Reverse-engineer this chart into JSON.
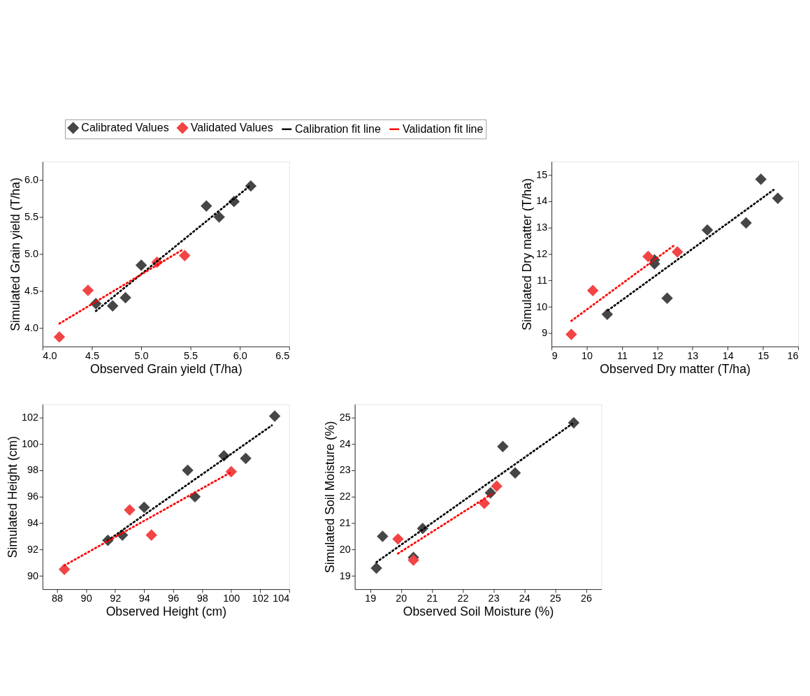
{
  "chart_data": [
    {
      "type": "scatter",
      "xlabel": "Observed Grain yield (T/ha)",
      "ylabel": "Simulated  Grain yield (T/ha)",
      "legend": "top",
      "grid": false,
      "xlim": [
        4.0,
        6.5
      ],
      "xticks": [
        {
          "value": 4,
          "label": "4.0"
        },
        4.5,
        {
          "value": 5,
          "label": "5.0"
        },
        5.5,
        {
          "value": 6,
          "label": "6.0"
        },
        6.5
      ],
      "ylim": [
        3.75,
        6.25
      ],
      "yticks": [
        {
          "value": 4,
          "label": "4.0"
        },
        4.5,
        {
          "value": 5,
          "label": "5.0"
        },
        5.5,
        {
          "value": 6,
          "label": "6.0"
        }
      ],
      "series": [
        {
          "name": "Calibrated Values",
          "marker": "diamond",
          "color": "#464646",
          "x": [
            4.54,
            4.71,
            4.84,
            5.0,
            5.66,
            5.79,
            5.94,
            6.11
          ],
          "values": [
            4.33,
            4.3,
            4.41,
            4.85,
            5.65,
            5.5,
            5.71,
            5.92
          ]
        },
        {
          "name": "Validated Values",
          "marker": "diamond",
          "color": "#f24444",
          "x": [
            4.17,
            4.46,
            5.16,
            5.44
          ],
          "values": [
            3.88,
            4.51,
            4.89,
            4.98
          ]
        },
        {
          "name": "Calibration fit line",
          "type": "line",
          "line_style": "dotted",
          "color": "#000000",
          "x": [
            4.54,
            6.09
          ],
          "values": [
            4.23,
            5.91
          ]
        },
        {
          "name": "Validation fit line",
          "type": "line",
          "line_style": "dotted",
          "color": "#ff0000",
          "x": [
            4.17,
            5.42
          ],
          "values": [
            4.06,
            5.06
          ]
        }
      ]
    },
    {
      "type": "scatter",
      "xlabel": "Observed Dry matter (T/ha)",
      "ylabel": "Simulated Dry matter (T/ha)",
      "grid": false,
      "xlim": [
        9,
        16
      ],
      "xticks": [
        9,
        10,
        11,
        12,
        13,
        14,
        15,
        16
      ],
      "ylim": [
        8.5,
        15.5
      ],
      "yticks": [
        9,
        10,
        11,
        12,
        13,
        14,
        15
      ],
      "series": [
        {
          "marker": "diamond",
          "color": "#464646",
          "x": [
            10.58,
            11.92,
            11.92,
            12.28,
            13.42,
            14.52,
            14.94,
            15.42
          ],
          "values": [
            9.72,
            11.78,
            11.63,
            10.33,
            12.91,
            13.18,
            14.83,
            14.11
          ]
        },
        {
          "marker": "diamond",
          "color": "#f24444",
          "x": [
            9.56,
            10.17,
            11.74,
            12.57
          ],
          "values": [
            8.96,
            10.62,
            11.91,
            12.08
          ]
        },
        {
          "type": "line",
          "line_style": "dotted",
          "color": "#000000",
          "x": [
            10.6,
            15.3
          ],
          "values": [
            9.87,
            14.43
          ]
        },
        {
          "type": "line",
          "line_style": "dotted",
          "color": "#ff0000",
          "x": [
            9.56,
            12.52
          ],
          "values": [
            9.47,
            12.37
          ]
        }
      ]
    },
    {
      "type": "scatter",
      "xlabel": "Observed Height (cm)",
      "ylabel": "Simulated Height (cm)",
      "grid": false,
      "xlim": [
        87,
        104
      ],
      "xticks": [
        88,
        90,
        92,
        94,
        96,
        98,
        100,
        102,
        104
      ],
      "ylim": [
        89,
        103
      ],
      "yticks": [
        90,
        92,
        94,
        96,
        98,
        100,
        102
      ],
      "series": [
        {
          "marker": "diamond",
          "color": "#464646",
          "x": [
            91.5,
            92.5,
            94,
            97,
            97.5,
            99.5,
            101,
            103
          ],
          "values": [
            92.7,
            93.1,
            95.2,
            98,
            96,
            99.1,
            98.9,
            102.1
          ]
        },
        {
          "marker": "diamond",
          "color": "#f24444",
          "x": [
            88.5,
            93,
            94.5,
            100
          ],
          "values": [
            90.5,
            95,
            93.1,
            97.9
          ]
        },
        {
          "type": "line",
          "line_style": "dotted",
          "color": "#000000",
          "x": [
            91.5,
            102.8
          ],
          "values": [
            92.7,
            101.4
          ]
        },
        {
          "type": "line",
          "line_style": "dotted",
          "color": "#ff0000",
          "x": [
            88.5,
            99.9
          ],
          "values": [
            90.8,
            97.8
          ]
        }
      ]
    },
    {
      "type": "scatter",
      "xlabel": "Observed Soil Moisture (%)",
      "ylabel": "Simulated  Soil Moisture (%)",
      "grid": false,
      "xlim": [
        18.5,
        26.5
      ],
      "xticks": [
        19,
        20,
        21,
        22,
        23,
        24,
        25,
        26
      ],
      "ylim": [
        18.5,
        25.5
      ],
      "yticks": [
        19,
        20,
        21,
        22,
        23,
        24,
        25
      ],
      "series": [
        {
          "marker": "diamond",
          "color": "#464646",
          "x": [
            19.2,
            19.4,
            20.4,
            20.7,
            22.9,
            23.3,
            23.7,
            25.6
          ],
          "values": [
            19.3,
            20.5,
            19.7,
            20.8,
            22.15,
            23.9,
            22.9,
            24.8
          ]
        },
        {
          "marker": "diamond",
          "color": "#f24444",
          "x": [
            19.9,
            20.4,
            22.7,
            23.1
          ],
          "values": [
            20.4,
            19.6,
            21.75,
            22.4
          ]
        },
        {
          "type": "line",
          "line_style": "dotted",
          "color": "#000000",
          "x": [
            19.2,
            25.55
          ],
          "values": [
            19.52,
            24.76
          ]
        },
        {
          "type": "line",
          "line_style": "dotted",
          "color": "#ff0000",
          "x": [
            19.9,
            23.0
          ],
          "values": [
            19.85,
            22.15
          ]
        }
      ]
    }
  ]
}
